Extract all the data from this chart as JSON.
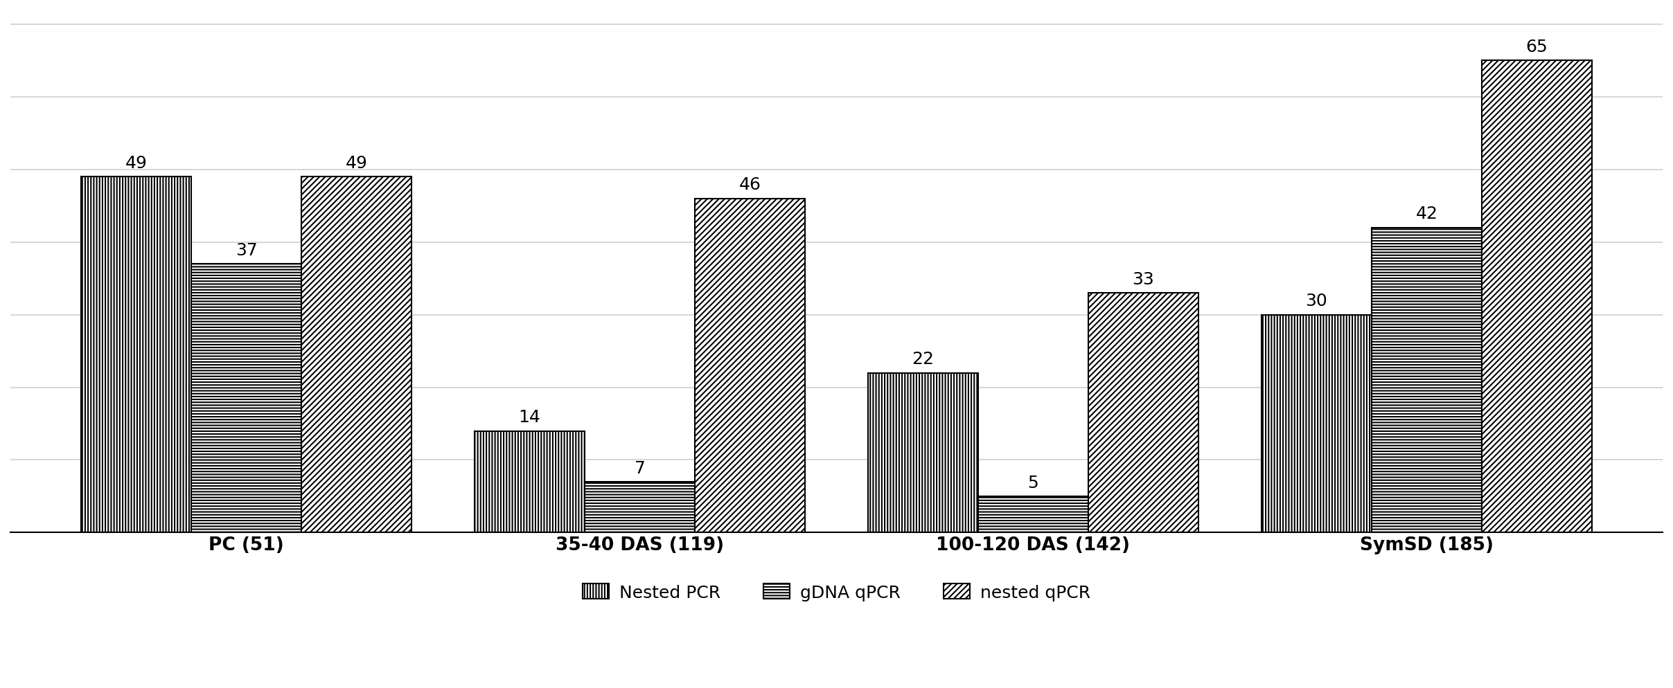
{
  "categories": [
    "PC (51)",
    "35-40 DAS (119)",
    "100-120 DAS (142)",
    "SymSD (185)"
  ],
  "series": {
    "Nested PCR": [
      49,
      14,
      22,
      30
    ],
    "gDNA qPCR": [
      37,
      7,
      5,
      42
    ],
    "nested qPCR": [
      49,
      46,
      33,
      65
    ]
  },
  "bar_width": 0.28,
  "ylim": [
    0,
    72
  ],
  "yticks": [
    0,
    10,
    20,
    30,
    40,
    50,
    60,
    70
  ],
  "background_color": "#ffffff",
  "bar_edge_color": "#000000",
  "bar_edge_width": 1.5,
  "hatch_nested_pcr": "||||",
  "hatch_gdna_qpcr": "----",
  "hatch_nested_qpcr": "////",
  "bar_facecolor": "#ffffff",
  "grid_color": "#d0d0d0",
  "grid_linewidth": 1.2,
  "tick_fontsize": 19,
  "legend_fontsize": 18,
  "value_fontsize": 18,
  "xlabel_fontweight": "bold",
  "legend_labels": [
    "Nested PCR",
    "gDNA qPCR",
    "nested qPCR"
  ]
}
